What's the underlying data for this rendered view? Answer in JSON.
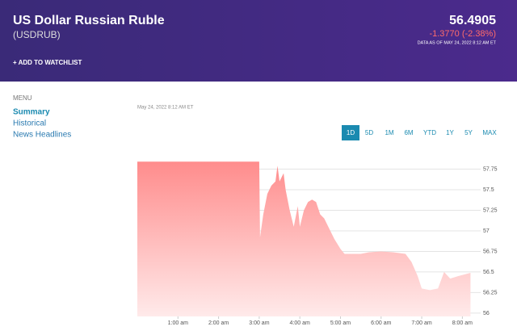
{
  "header": {
    "title": "US Dollar Russian Ruble",
    "symbol": "(USDRUB)",
    "watchlist": "+ ADD TO WATCHLIST",
    "price": "56.4905",
    "change": "-1.3770 (-2.38%)",
    "as_of": "DATA AS OF MAY 24, 2022 8:12 AM ET"
  },
  "menu": {
    "title": "MENU",
    "items": [
      "Summary",
      "Historical",
      "News Headlines"
    ]
  },
  "timestamp": "May 24, 2022 8:12 AM ET",
  "ranges": [
    "1D",
    "5D",
    "1M",
    "6M",
    "YTD",
    "1Y",
    "5Y",
    "MAX"
  ],
  "chart_data": {
    "type": "area",
    "color": "#ff8c8c",
    "x": [
      0,
      3.0,
      3.02,
      3.1,
      3.2,
      3.3,
      3.4,
      3.45,
      3.5,
      3.6,
      3.65,
      3.75,
      3.85,
      3.95,
      4.0,
      4.1,
      4.2,
      4.3,
      4.4,
      4.5,
      4.6,
      4.7,
      4.85,
      5.0,
      5.1,
      5.3,
      5.5,
      5.7,
      6.0,
      6.3,
      6.6,
      6.75,
      6.9,
      7.0,
      7.2,
      7.4,
      7.55,
      7.7,
      7.9,
      8.2
    ],
    "values": [
      57.84,
      57.84,
      56.92,
      57.2,
      57.45,
      57.55,
      57.6,
      57.79,
      57.6,
      57.7,
      57.5,
      57.25,
      57.05,
      57.3,
      57.05,
      57.25,
      57.35,
      57.38,
      57.35,
      57.2,
      57.15,
      57.05,
      56.9,
      56.78,
      56.72,
      56.72,
      56.72,
      56.74,
      56.75,
      56.74,
      56.72,
      56.62,
      56.45,
      56.3,
      56.28,
      56.3,
      56.5,
      56.42,
      56.45,
      56.49
    ],
    "xlim": [
      0,
      8.45
    ],
    "ylim": [
      55.96,
      57.99
    ],
    "xticks": [
      {
        "value": 1,
        "label": "1:00 am"
      },
      {
        "value": 2,
        "label": "2:00 am"
      },
      {
        "value": 3,
        "label": "3:00 am"
      },
      {
        "value": 4,
        "label": "4:00 am"
      },
      {
        "value": 5,
        "label": "5:00 am"
      },
      {
        "value": 6,
        "label": "6:00 am"
      },
      {
        "value": 7,
        "label": "7:00 am"
      },
      {
        "value": 8,
        "label": "8:00 am"
      }
    ],
    "yticks": [
      56,
      56.25,
      56.5,
      56.75,
      57,
      57.25,
      57.5,
      57.75
    ],
    "grid": true
  }
}
